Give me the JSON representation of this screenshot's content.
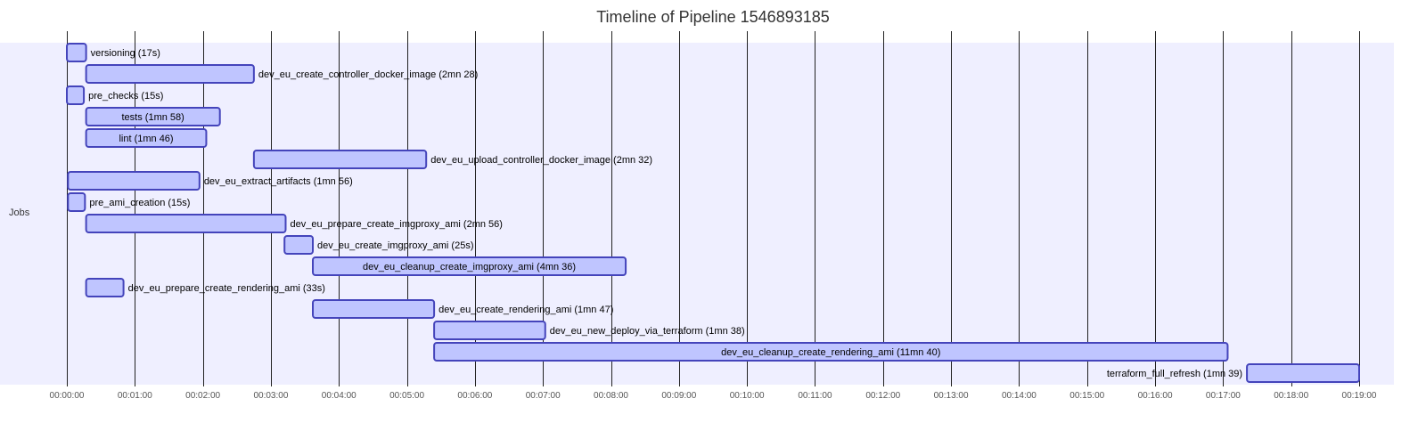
{
  "chart_data": {
    "type": "gantt",
    "title": "Timeline of Pipeline 1546893185",
    "section": "Jobs",
    "colors": {
      "section_background": "#efefff",
      "bar_fill": "#bfc5ff",
      "bar_stroke": "#4444bb",
      "grid": "#222222"
    },
    "x_unit": "seconds",
    "xlim": [
      0,
      1140
    ],
    "ticks": [
      {
        "value": 0,
        "label": "00:00:00"
      },
      {
        "value": 60,
        "label": "00:01:00"
      },
      {
        "value": 120,
        "label": "00:02:00"
      },
      {
        "value": 180,
        "label": "00:03:00"
      },
      {
        "value": 240,
        "label": "00:04:00"
      },
      {
        "value": 300,
        "label": "00:05:00"
      },
      {
        "value": 360,
        "label": "00:06:00"
      },
      {
        "value": 420,
        "label": "00:07:00"
      },
      {
        "value": 480,
        "label": "00:08:00"
      },
      {
        "value": 540,
        "label": "00:09:00"
      },
      {
        "value": 600,
        "label": "00:10:00"
      },
      {
        "value": 660,
        "label": "00:11:00"
      },
      {
        "value": 720,
        "label": "00:12:00"
      },
      {
        "value": 780,
        "label": "00:13:00"
      },
      {
        "value": 840,
        "label": "00:14:00"
      },
      {
        "value": 900,
        "label": "00:15:00"
      },
      {
        "value": 960,
        "label": "00:16:00"
      },
      {
        "value": 1020,
        "label": "00:17:00"
      },
      {
        "value": 1080,
        "label": "00:18:00"
      },
      {
        "value": 1140,
        "label": "00:19:00"
      }
    ],
    "tasks": [
      {
        "label": "versioning (17s)",
        "start": 0,
        "duration": 17,
        "label_position": "right"
      },
      {
        "label": "dev_eu_create_controller_docker_image (2mn 28)",
        "start": 17,
        "duration": 148,
        "label_position": "right"
      },
      {
        "label": "pre_checks (15s)",
        "start": 0,
        "duration": 15,
        "label_position": "right"
      },
      {
        "label": "tests (1mn 58)",
        "start": 17,
        "duration": 118,
        "label_position": "inside"
      },
      {
        "label": "lint (1mn 46)",
        "start": 17,
        "duration": 106,
        "label_position": "inside"
      },
      {
        "label": "dev_eu_upload_controller_docker_image (2mn 32)",
        "start": 165,
        "duration": 152,
        "label_position": "right"
      },
      {
        "label": "dev_eu_extract_artifacts (1mn 56)",
        "start": 1,
        "duration": 116,
        "label_position": "right"
      },
      {
        "label": "pre_ami_creation (15s)",
        "start": 1,
        "duration": 15,
        "label_position": "right"
      },
      {
        "label": "dev_eu_prepare_create_imgproxy_ami (2mn 56)",
        "start": 17,
        "duration": 176,
        "label_position": "right"
      },
      {
        "label": "dev_eu_create_imgproxy_ami (25s)",
        "start": 192,
        "duration": 25,
        "label_position": "right"
      },
      {
        "label": "dev_eu_cleanup_create_imgproxy_ami (4mn 36)",
        "start": 217,
        "duration": 276,
        "label_position": "inside"
      },
      {
        "label": "dev_eu_prepare_create_rendering_ami (33s)",
        "start": 17,
        "duration": 33,
        "label_position": "right"
      },
      {
        "label": "dev_eu_create_rendering_ami (1mn 47)",
        "start": 217,
        "duration": 107,
        "label_position": "right"
      },
      {
        "label": "dev_eu_new_deploy_via_terraform (1mn 38)",
        "start": 324,
        "duration": 98,
        "label_position": "right"
      },
      {
        "label": "dev_eu_cleanup_create_rendering_ami (11mn 40)",
        "start": 324,
        "duration": 700,
        "label_position": "inside"
      },
      {
        "label": "terraform_full_refresh (1mn 39)",
        "start": 1041,
        "duration": 99,
        "label_position": "left"
      }
    ]
  }
}
